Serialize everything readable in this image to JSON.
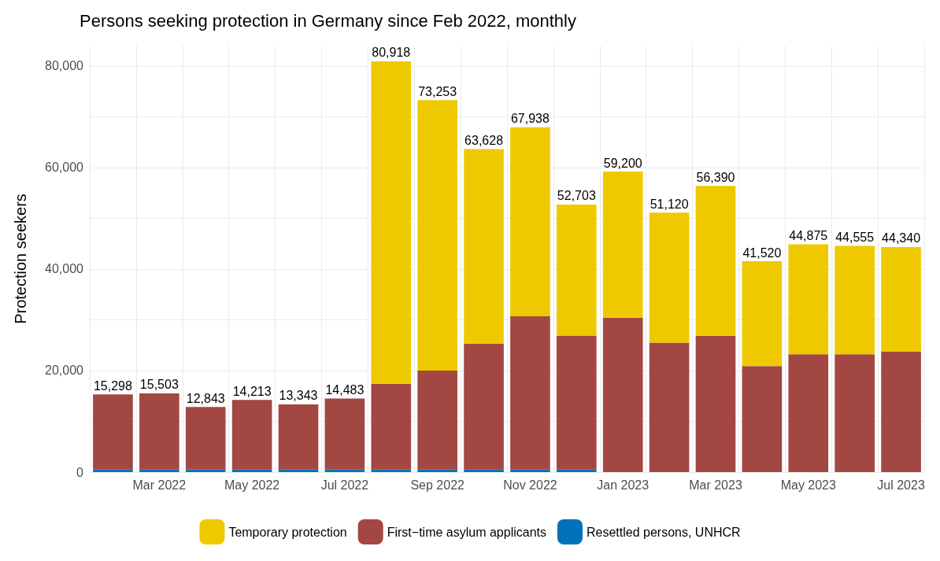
{
  "chart_data": {
    "type": "bar",
    "title": "Persons seeking protection in Germany since Feb 2022, monthly",
    "ylabel": "Protection seekers",
    "categories": [
      null,
      "Mar 2022",
      null,
      "May 2022",
      null,
      "Jul 2022",
      null,
      "Sep 2022",
      null,
      "Nov 2022",
      null,
      "Jan 2023",
      null,
      "Mar 2023",
      null,
      "May 2023",
      null,
      "Jul 2023"
    ],
    "stacked": true,
    "series": [
      {
        "name": "Resettled persons, UNHCR",
        "color": "#0072bc",
        "values": [
          500,
          500,
          500,
          500,
          500,
          500,
          500,
          500,
          500,
          500,
          500,
          0,
          0,
          0,
          0,
          0,
          0,
          0
        ]
      },
      {
        "name": "First−time asylum applicants",
        "color": "#a34743",
        "values": [
          14798,
          15003,
          12343,
          13713,
          12843,
          13983,
          16900,
          19500,
          24800,
          30200,
          26400,
          30400,
          25500,
          26800,
          20900,
          23200,
          23200,
          23700
        ]
      },
      {
        "name": "Temporary protection",
        "color": "#eec900",
        "values": [
          0,
          0,
          0,
          0,
          0,
          0,
          63518,
          53253,
          38328,
          37238,
          25803,
          28800,
          25620,
          29590,
          20620,
          21675,
          21355,
          20640
        ]
      }
    ],
    "totals": [
      "15,298",
      "15,503",
      "12,843",
      "14,213",
      "13,343",
      "14,483",
      "80,918",
      "73,253",
      "63,628",
      "67,938",
      "52,703",
      "59,200",
      "51,120",
      "56,390",
      "41,520",
      "44,875",
      "44,555",
      "44,340"
    ],
    "ylim": [
      0,
      84000
    ],
    "yticks": [
      0,
      {
        "value": 10000,
        "label": null
      },
      {
        "value": 20000,
        "label": "20,000"
      },
      {
        "value": 30000,
        "label": null
      },
      {
        "value": 40000,
        "label": "40,000"
      },
      {
        "value": 50000,
        "label": null
      },
      {
        "value": 60000,
        "label": "60,000"
      },
      {
        "value": 70000,
        "label": null
      },
      {
        "value": 80000,
        "label": "80,000"
      }
    ],
    "grid": true,
    "legend": "bottom"
  }
}
